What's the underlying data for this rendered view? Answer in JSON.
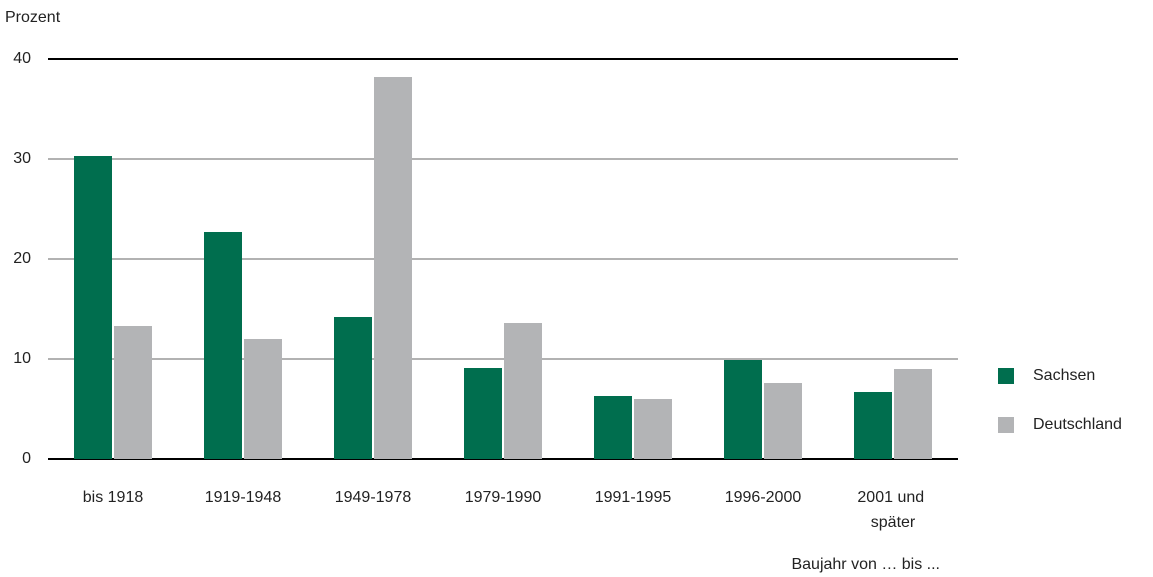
{
  "chart_data": {
    "type": "bar",
    "y_axis_label": "Prozent",
    "x_axis_label": "Baujahr von … bis ...",
    "categories": [
      "bis 1918",
      "1919-1948",
      "1949-1978",
      "1979-1990",
      "1991-1995",
      "1996-2000",
      "2001 und später"
    ],
    "series": [
      {
        "name": "Sachsen",
        "color": "#006e4e",
        "values": [
          30.3,
          22.7,
          14.2,
          9.1,
          6.3,
          9.9,
          6.7
        ]
      },
      {
        "name": "Deutschland",
        "color": "#b3b4b6",
        "values": [
          13.3,
          12.0,
          38.2,
          13.6,
          6.0,
          7.6,
          9.0
        ]
      }
    ],
    "ylim": [
      0,
      40
    ],
    "yticks": [
      0,
      10,
      20,
      30,
      40
    ],
    "grid": true,
    "legend": "right"
  }
}
